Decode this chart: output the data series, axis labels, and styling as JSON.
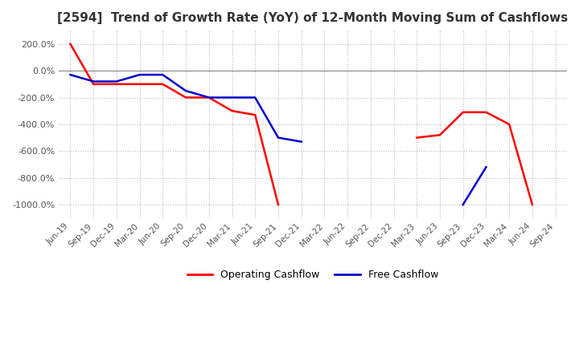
{
  "title": "[2594]  Trend of Growth Rate (YoY) of 12-Month Moving Sum of Cashflows",
  "title_fontsize": 11,
  "ylim": [
    -1100,
    300
  ],
  "yticks": [
    200,
    0,
    -200,
    -400,
    -600,
    -800,
    -1000
  ],
  "background_color": "#ffffff",
  "grid_color": "#bbbbbb",
  "grid_style": "dotted",
  "x_labels": [
    "Jun-19",
    "Sep-19",
    "Dec-19",
    "Mar-20",
    "Jun-20",
    "Sep-20",
    "Dec-20",
    "Mar-21",
    "Jun-21",
    "Sep-21",
    "Dec-21",
    "Mar-22",
    "Jun-22",
    "Sep-22",
    "Dec-22",
    "Mar-23",
    "Jun-23",
    "Sep-23",
    "Dec-23",
    "Mar-24",
    "Jun-24",
    "Sep-24"
  ],
  "operating_cashflow": [
    200,
    -100,
    -100,
    -100,
    -100,
    -200,
    -200,
    -300,
    -330,
    -1000,
    null,
    null,
    null,
    null,
    null,
    -500,
    -480,
    -310,
    -310,
    -400,
    -1000,
    null
  ],
  "free_cashflow": [
    -30,
    -80,
    -80,
    -30,
    -30,
    -150,
    -200,
    -200,
    -200,
    -500,
    -530,
    null,
    null,
    null,
    null,
    null,
    null,
    -1000,
    -720,
    null,
    null,
    null
  ],
  "operating_color": "#ff0000",
  "free_color": "#0000cc",
  "line_width": 1.8,
  "legend_labels": [
    "Operating Cashflow",
    "Free Cashflow"
  ]
}
